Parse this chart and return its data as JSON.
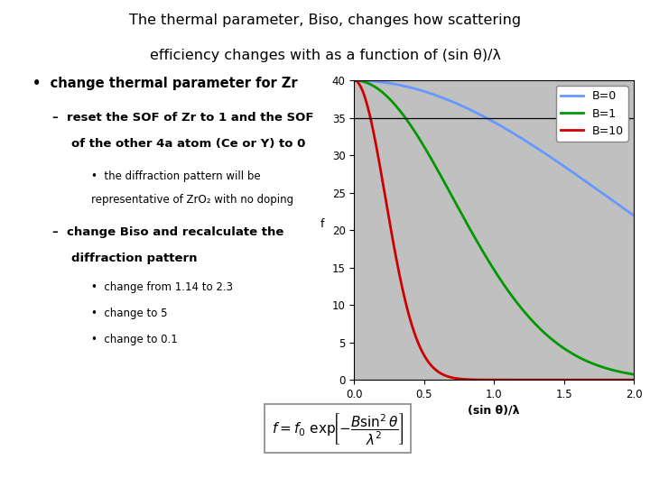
{
  "title_line1": "The thermal parameter, Biso, changes how scattering",
  "title_line2": "efficiency changes with as a function of (sin θ)/λ",
  "slide_bg": "#ffffff",
  "plot_bg": "#c0c0c0",
  "xlabel": "(sin θ)/λ",
  "ylabel": "f",
  "xlim": [
    0,
    2
  ],
  "ylim": [
    0,
    40
  ],
  "xticks": [
    0,
    0.5,
    1,
    1.5,
    2
  ],
  "yticks": [
    0,
    5,
    10,
    15,
    20,
    25,
    30,
    35,
    40
  ],
  "f0": 40,
  "B_values": [
    0.15,
    1.0,
    10.0
  ],
  "line_colors": [
    "#6699ff",
    "#009900",
    "#cc0000"
  ],
  "legend_labels": [
    "B=0",
    "B=1",
    "B=10"
  ],
  "hline_y": 35
}
